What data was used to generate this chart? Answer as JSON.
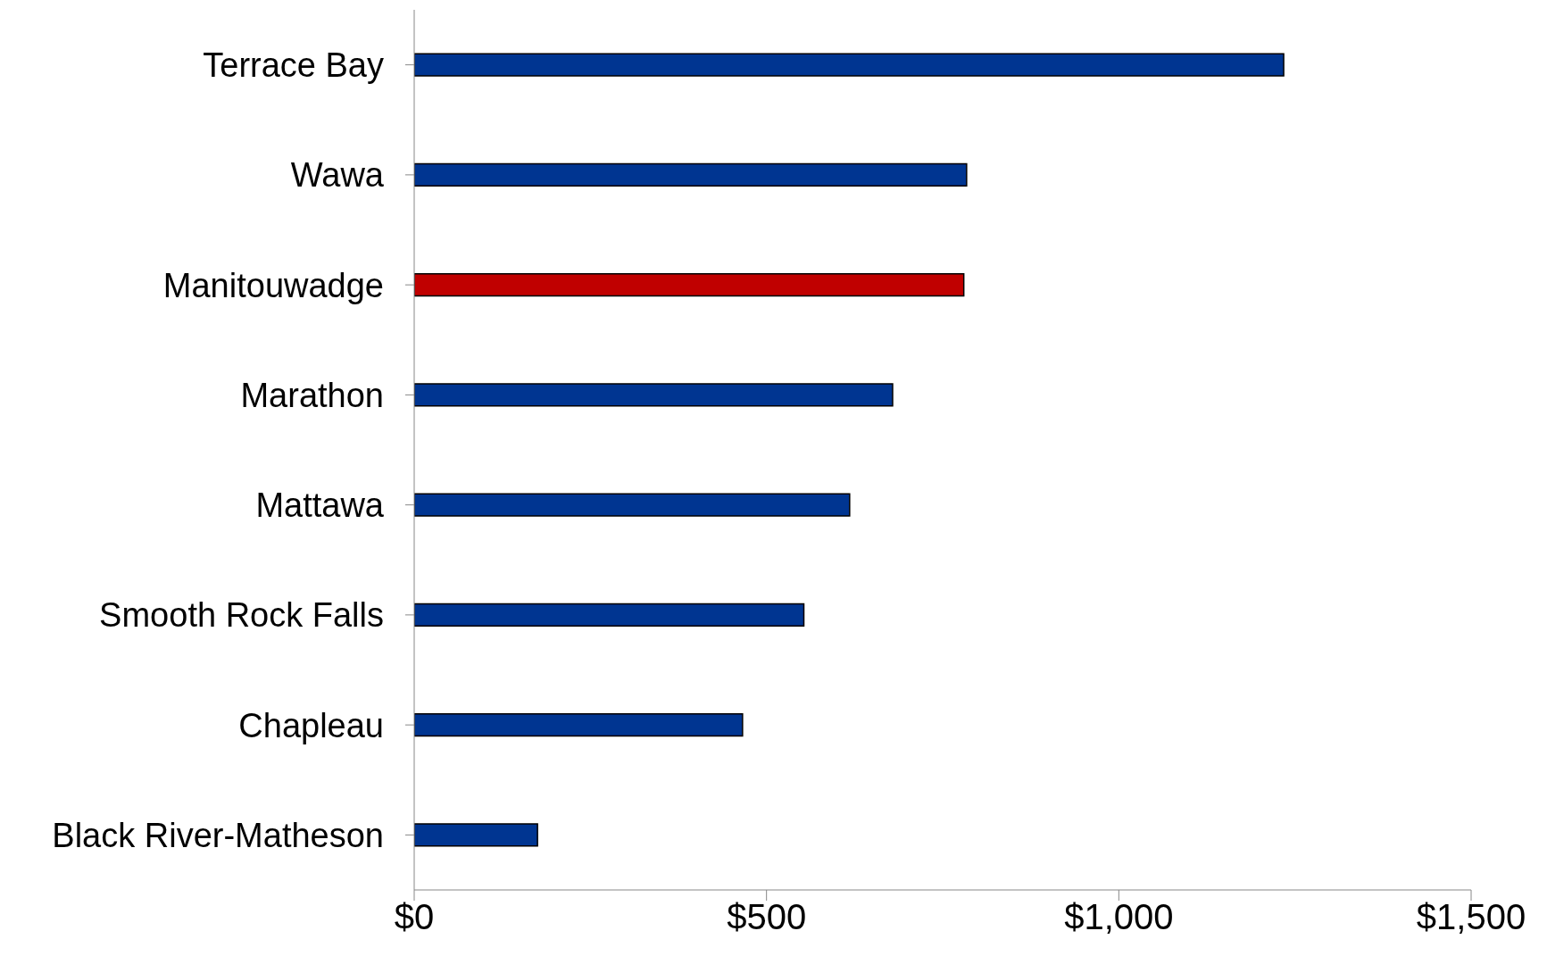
{
  "chart_data": {
    "type": "bar",
    "orientation": "horizontal",
    "categories": [
      "Terrace Bay",
      "Wawa",
      "Manitouwadge",
      "Marathon",
      "Mattawa",
      "Smooth Rock Falls",
      "Chapleau",
      "Black River-Matheson"
    ],
    "values": [
      1234,
      784,
      780,
      679,
      618,
      553,
      466,
      175
    ],
    "colors": [
      "#003591",
      "#003591",
      "#c00000",
      "#003591",
      "#003591",
      "#003591",
      "#003591",
      "#003591"
    ],
    "xlim": [
      0,
      1500
    ],
    "xticks": [
      {
        "value": 0,
        "label": "$0"
      },
      {
        "value": 500,
        "label": "$500"
      },
      {
        "value": 1000,
        "label": "$1,000"
      },
      {
        "value": 1500,
        "label": "$1,500"
      }
    ],
    "grid": false,
    "legend": false
  }
}
